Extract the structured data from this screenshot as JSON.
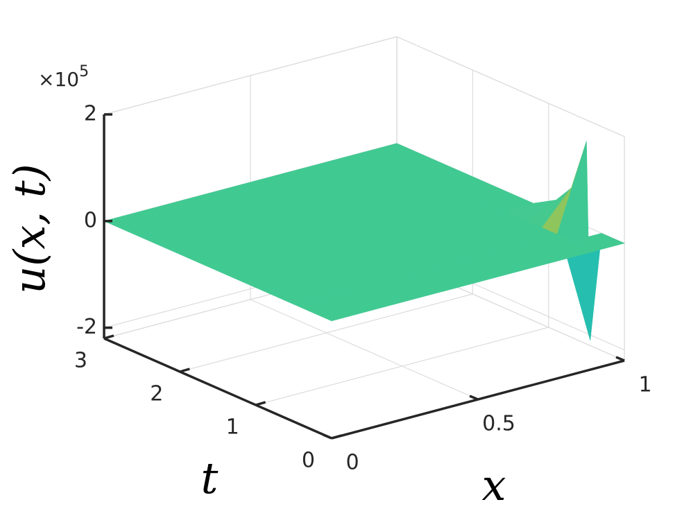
{
  "chart_data": {
    "type": "surface",
    "xlabel": "x",
    "ylabel": "t",
    "zlabel": "u(x, t)",
    "z_multiplier": "×10",
    "z_exponent": "5",
    "x": [
      0,
      0.9,
      1
    ],
    "t": [
      0,
      0.3,
      0.45,
      0.5,
      0.7,
      0.9,
      1.2,
      3
    ],
    "z": [
      [
        0,
        0,
        0
      ],
      [
        0,
        0,
        0
      ],
      [
        0,
        0,
        -2.1
      ],
      [
        0,
        0,
        1.6
      ],
      [
        0,
        0,
        0.6
      ],
      [
        0,
        0,
        0.25
      ],
      [
        0,
        0,
        0
      ],
      [
        0,
        0,
        0
      ]
    ],
    "xlim": [
      0,
      1
    ],
    "tlim": [
      0,
      3
    ],
    "zlim": [
      -2.2,
      2
    ],
    "xticks": [
      0,
      0.5,
      1
    ],
    "tticks": [
      0,
      1,
      2,
      3
    ],
    "zticks": [
      -2,
      0,
      2
    ],
    "grid": true,
    "colormap": [
      "#3e26a8",
      "#2e60f2",
      "#1b9be3",
      "#17b8c0",
      "#3cc896",
      "#46c98e",
      "#a9c54b",
      "#fbd22f",
      "#f9fb14"
    ]
  }
}
